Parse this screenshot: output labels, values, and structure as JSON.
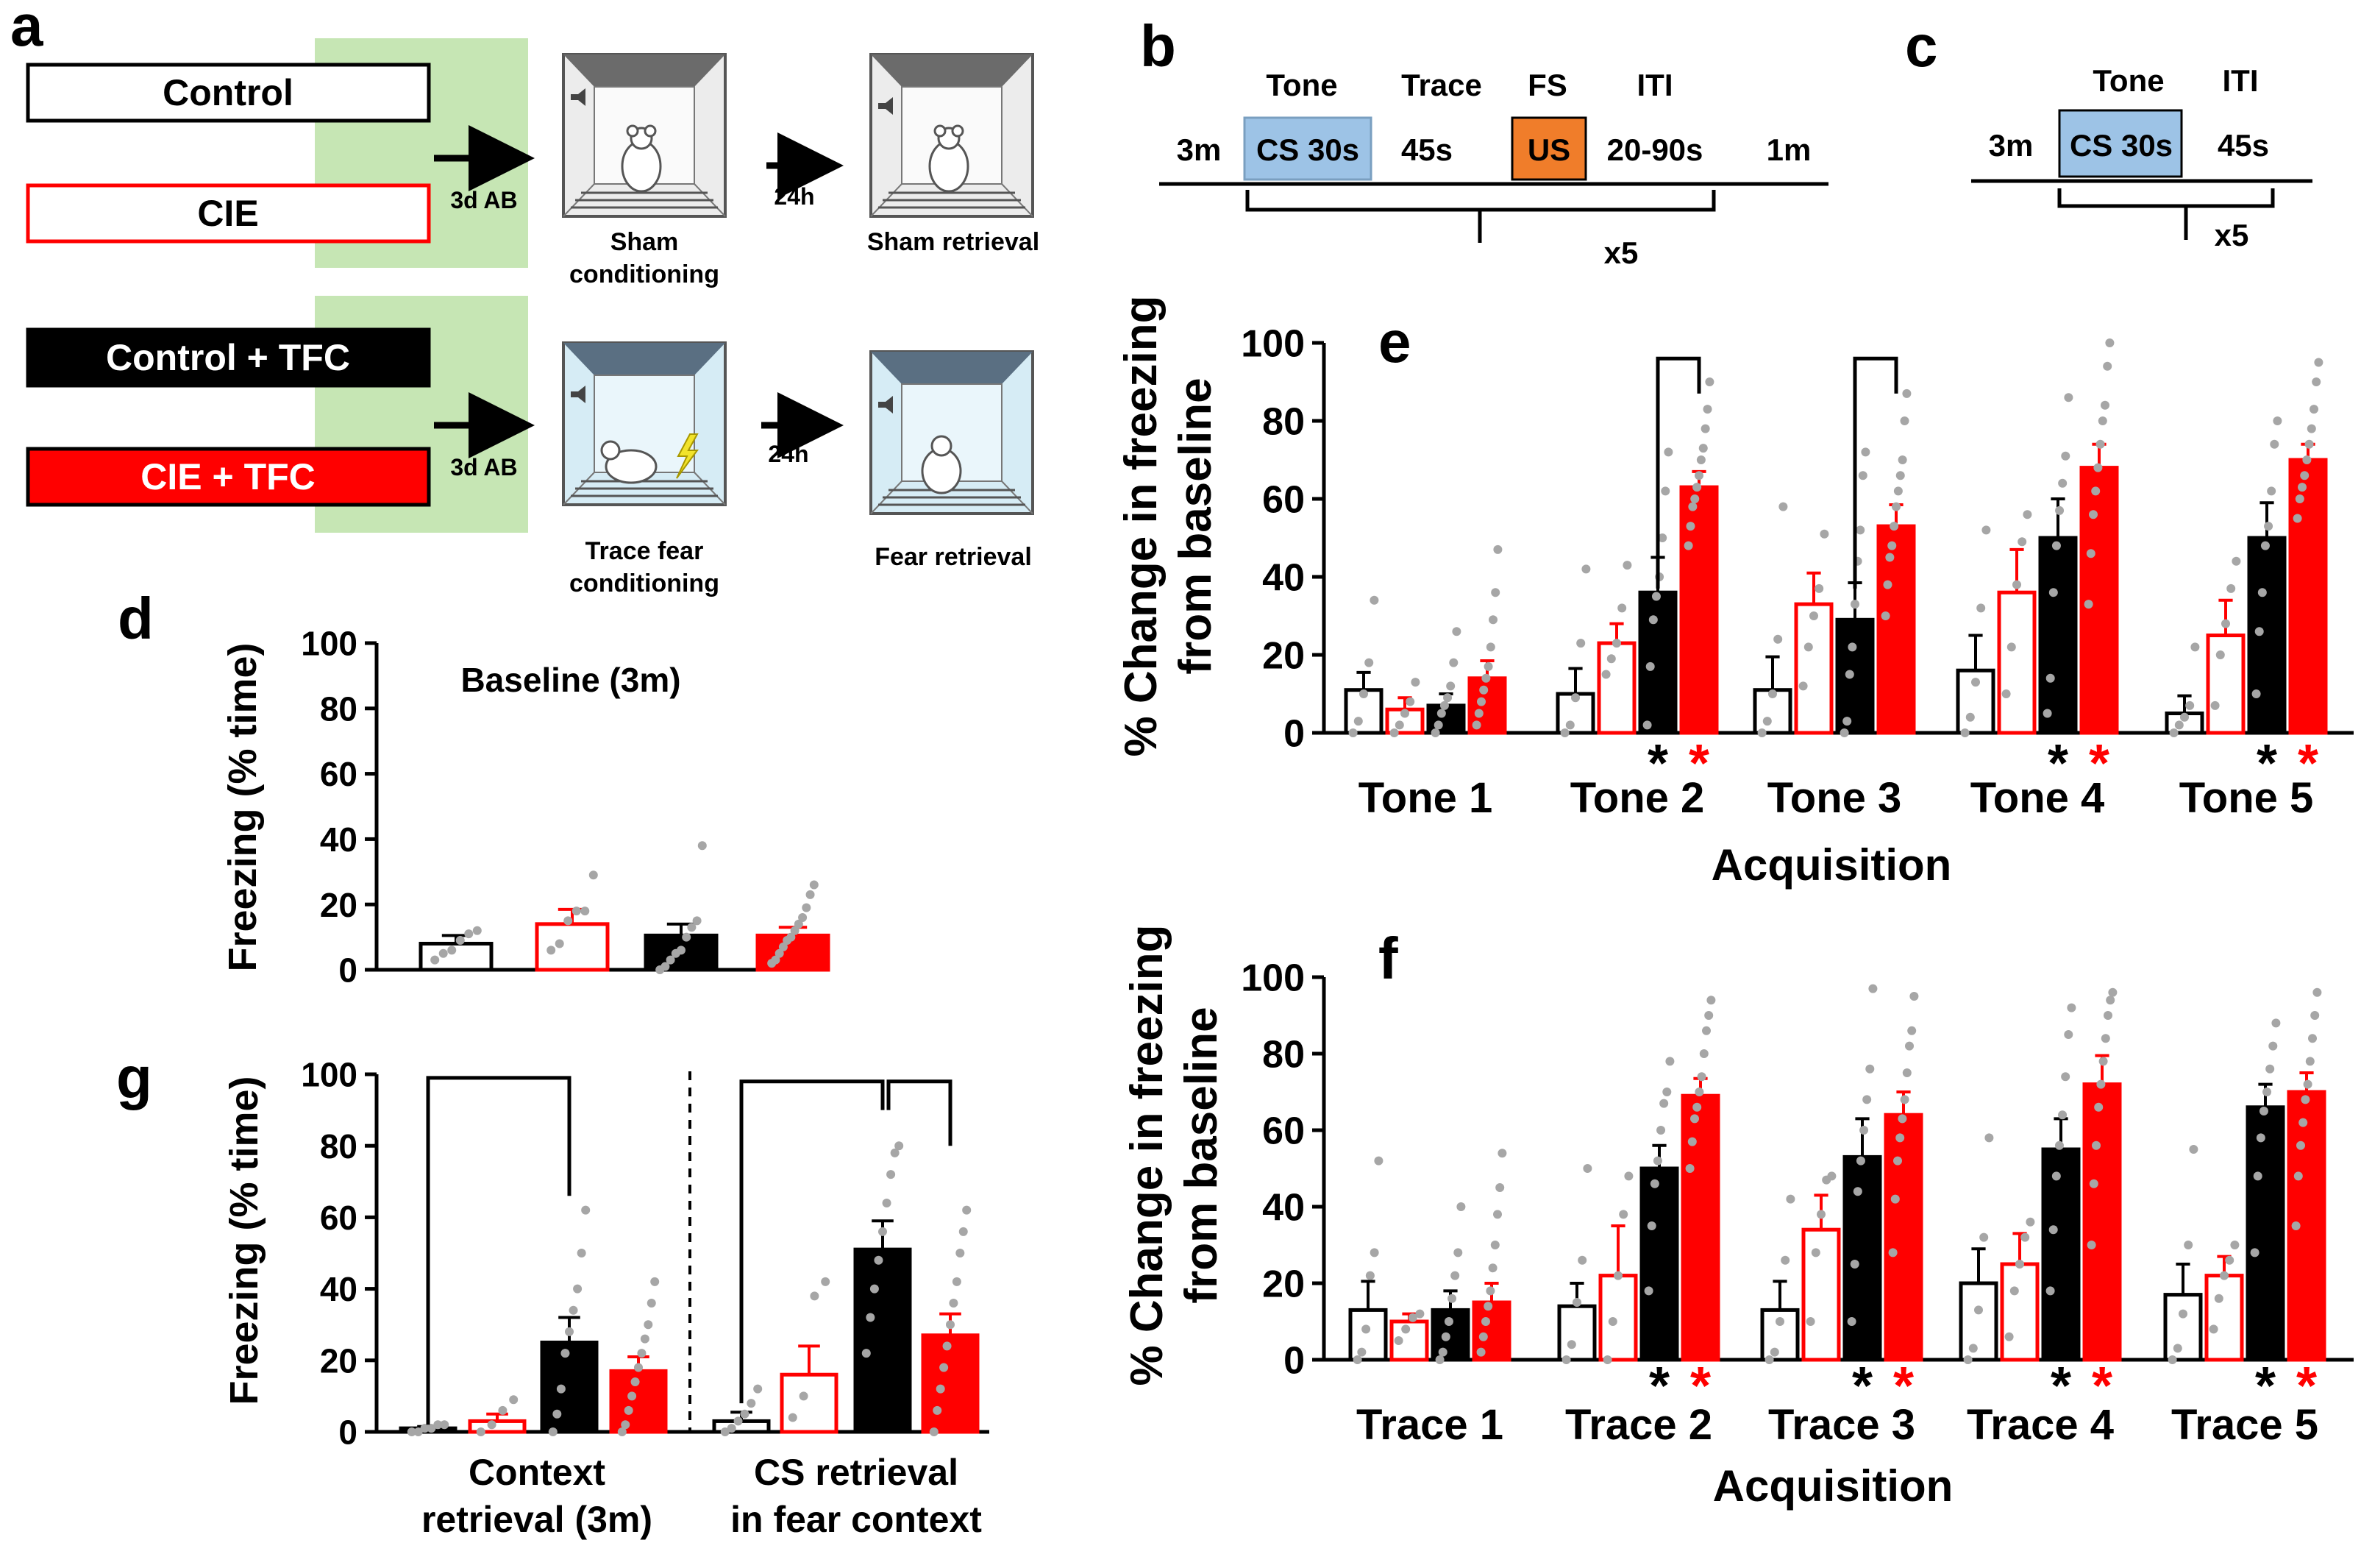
{
  "colors": {
    "red": "#ff0000",
    "black": "#000000",
    "dot": "#a6a6a6",
    "green": "#c6e6b4",
    "cs": "#9dc3e6",
    "us": "#f07d2a",
    "box_blue": "#bfe1ee"
  },
  "panel_a": {
    "letter": "a",
    "groups": [
      "Control",
      "CIE",
      "Control + TFC",
      "CIE + TFC"
    ],
    "arrow_labels": [
      "3d AB",
      "24h",
      "3d AB",
      "24h"
    ],
    "sham_labels": [
      "Sham",
      "conditioning",
      "Sham retrieval"
    ],
    "fear_labels": [
      "Trace fear",
      "conditioning",
      "Fear retrieval"
    ]
  },
  "panel_b": {
    "letter": "b",
    "top_labels": [
      "Tone",
      "Trace",
      "FS",
      "ITI"
    ],
    "timeline_labels": [
      "3m",
      "CS 30s",
      "45s",
      "US",
      "20-90s",
      "1m"
    ],
    "repeat": "x5"
  },
  "panel_c": {
    "letter": "c",
    "top_labels": [
      "Tone",
      "ITI"
    ],
    "timeline_labels": [
      "3m",
      "CS 30s",
      "45s"
    ],
    "repeat": "x5"
  },
  "chart_data": [
    {
      "id": "d",
      "letter": "d",
      "type": "bar",
      "title": "Baseline (3m)",
      "ylabel": "Freezing (% time)",
      "ylim": [
        0,
        100
      ],
      "yticks": [
        "0",
        "20",
        "40",
        "60",
        "80",
        "100"
      ],
      "groups": [
        "Control",
        "CIE",
        "Control + TFC",
        "CIE + TFC"
      ],
      "means": [
        8,
        14,
        10.5,
        10.5
      ],
      "sems": [
        2.5,
        4.5,
        3.5,
        2.5
      ],
      "points": [
        [
          3,
          5,
          6,
          9,
          11,
          12
        ],
        [
          6,
          8,
          15,
          18,
          18,
          29
        ],
        [
          0,
          1,
          3,
          5,
          6,
          10,
          13,
          15,
          38
        ],
        [
          2,
          3,
          5,
          7,
          9,
          10,
          12,
          14,
          16,
          19,
          23,
          26
        ]
      ]
    },
    {
      "id": "e",
      "letter": "e",
      "type": "bar",
      "xlabel": "Acquisition",
      "ylabel_lines": [
        "% Change in freezing",
        "from baseline"
      ],
      "ylim": [
        0,
        100
      ],
      "yticks": [
        "0",
        "20",
        "40",
        "60",
        "80",
        "100"
      ],
      "categories": [
        "Tone 1",
        "Tone 2",
        "Tone 3",
        "Tone 4",
        "Tone 5"
      ],
      "series": [
        {
          "name": "Control",
          "values": [
            11,
            10,
            11,
            16,
            5
          ],
          "sems": [
            4.5,
            6.5,
            8.5,
            9,
            4.5
          ],
          "points": [
            [
              0,
              3,
              10,
              18,
              34
            ],
            [
              0,
              2,
              9,
              23,
              42
            ],
            [
              0,
              3,
              10,
              24,
              58
            ],
            [
              0,
              4,
              13,
              32,
              52
            ],
            [
              0,
              2,
              4,
              7,
              22
            ]
          ]
        },
        {
          "name": "CIE",
          "values": [
            6,
            23,
            33,
            36,
            25
          ],
          "sems": [
            3,
            5,
            8,
            11,
            9
          ],
          "points": [
            [
              0,
              2,
              5,
              8,
              13
            ],
            [
              15,
              19,
              23,
              32,
              43
            ],
            [
              12,
              22,
              30,
              37,
              51
            ],
            [
              10,
              22,
              38,
              49,
              56
            ],
            [
              7,
              20,
              28,
              37,
              44
            ]
          ]
        },
        {
          "name": "Control + TFC",
          "values": [
            7,
            36,
            29,
            50,
            50
          ],
          "sems": [
            3,
            9,
            9.5,
            10,
            9
          ],
          "points": [
            [
              0,
              2,
              5,
              7,
              9,
              12,
              18,
              26
            ],
            [
              2,
              17,
              29,
              35,
              40,
              50,
              62,
              72
            ],
            [
              0,
              3,
              15,
              22,
              33,
              44,
              52,
              66,
              72
            ],
            [
              5,
              14,
              36,
              48,
              57,
              64,
              71,
              86
            ],
            [
              10,
              26,
              36,
              48,
              53,
              62,
              74,
              80
            ]
          ]
        },
        {
          "name": "CIE + TFC",
          "values": [
            14,
            63,
            53,
            68,
            70
          ],
          "sems": [
            4.5,
            4,
            5.5,
            6,
            4
          ],
          "points": [
            [
              2,
              5,
              8,
              11,
              14,
              17,
              22,
              29,
              36,
              47
            ],
            [
              48,
              53,
              58,
              60,
              63,
              66,
              70,
              73,
              78,
              83,
              90
            ],
            [
              30,
              38,
              45,
              48,
              53,
              58,
              62,
              66,
              70,
              80,
              87
            ],
            [
              33,
              46,
              56,
              62,
              68,
              74,
              80,
              84,
              94,
              100
            ],
            [
              55,
              60,
              63,
              66,
              70,
              74,
              78,
              83,
              90,
              95
            ]
          ]
        }
      ],
      "significance": [
        [
          "*",
          "*"
        ],
        [
          "*",
          "*"
        ],
        [
          "*",
          "*"
        ]
      ],
      "sig_categories": [
        "Tone 2",
        "Tone 4",
        "Tone 5"
      ]
    },
    {
      "id": "f",
      "letter": "f",
      "type": "bar",
      "xlabel": "Acquisition",
      "ylabel_lines": [
        "% Change in freezing",
        "from baseline"
      ],
      "ylim": [
        0,
        100
      ],
      "yticks": [
        "0",
        "20",
        "40",
        "60",
        "80",
        "100"
      ],
      "categories": [
        "Trace 1",
        "Trace 2",
        "Trace 3",
        "Trace 4",
        "Trace 5"
      ],
      "series": [
        {
          "name": "Control",
          "values": [
            13,
            14,
            13,
            20,
            17
          ],
          "sems": [
            7.5,
            6,
            7.5,
            9,
            8
          ],
          "points": [
            [
              0,
              2,
              8,
              22,
              28,
              52
            ],
            [
              0,
              4,
              15,
              26,
              50
            ],
            [
              0,
              2,
              10,
              26,
              42
            ],
            [
              0,
              3,
              13,
              32,
              58
            ],
            [
              0,
              3,
              12,
              30,
              55
            ]
          ]
        },
        {
          "name": "CIE",
          "values": [
            10,
            22,
            34,
            25,
            22
          ],
          "sems": [
            2,
            13,
            9,
            8,
            5
          ],
          "points": [
            [
              5,
              8,
              11,
              12
            ],
            [
              0,
              10,
              22,
              38,
              48
            ],
            [
              10,
              28,
              38,
              47,
              48
            ],
            [
              6,
              18,
              25,
              32,
              36
            ],
            [
              8,
              16,
              22,
              26,
              30
            ]
          ]
        },
        {
          "name": "Control + TFC",
          "values": [
            13,
            50,
            53,
            55,
            66
          ],
          "sems": [
            5,
            6,
            10,
            8,
            6
          ],
          "points": [
            [
              0,
              2,
              6,
              10,
              16,
              22,
              28,
              40
            ],
            [
              18,
              35,
              46,
              52,
              60,
              67,
              70,
              78
            ],
            [
              10,
              25,
              44,
              52,
              60,
              68,
              76,
              97
            ],
            [
              18,
              34,
              48,
              56,
              64,
              74,
              85,
              92
            ],
            [
              28,
              48,
              58,
              65,
              70,
              76,
              82,
              88
            ]
          ]
        },
        {
          "name": "CIE + TFC",
          "values": [
            15,
            69,
            64,
            72,
            70
          ],
          "sems": [
            5,
            4.5,
            6,
            7.5,
            5
          ],
          "points": [
            [
              2,
              6,
              10,
              14,
              18,
              24,
              30,
              38,
              45,
              54
            ],
            [
              50,
              57,
              63,
              66,
              70,
              74,
              80,
              86,
              90,
              94
            ],
            [
              28,
              42,
              52,
              58,
              63,
              68,
              75,
              82,
              86,
              95
            ],
            [
              30,
              46,
              56,
              66,
              72,
              78,
              84,
              90,
              94,
              96
            ],
            [
              35,
              48,
              56,
              62,
              68,
              72,
              78,
              84,
              90,
              96
            ]
          ]
        }
      ],
      "significance": [
        [
          "*",
          "*"
        ],
        [
          "*",
          "*"
        ],
        [
          "*",
          "*"
        ],
        [
          "*",
          "*"
        ]
      ],
      "sig_categories": [
        "Trace 2",
        "Trace 3",
        "Trace 4",
        "Trace 5"
      ]
    },
    {
      "id": "g",
      "letter": "g",
      "type": "bar",
      "ylabel": "Freezing (% time)",
      "ylim": [
        0,
        100
      ],
      "yticks": [
        "0",
        "20",
        "40",
        "60",
        "80",
        "100"
      ],
      "categories": [
        [
          "Context",
          "retrieval (3m)"
        ],
        [
          "CS retrieval",
          "in fear context"
        ]
      ],
      "series": [
        {
          "name": "Control",
          "values": [
            1,
            3
          ],
          "sems": [
            0.5,
            2.5
          ],
          "points": [
            [
              0,
              0,
              1,
              1,
              2,
              2
            ],
            [
              0,
              1,
              3,
              5,
              8,
              12
            ]
          ]
        },
        {
          "name": "CIE",
          "values": [
            3,
            16
          ],
          "sems": [
            2,
            8
          ],
          "points": [
            [
              0,
              2,
              6,
              9
            ],
            [
              4,
              10,
              38,
              42
            ]
          ]
        },
        {
          "name": "Control + TFC",
          "values": [
            25,
            51
          ],
          "sems": [
            7,
            8
          ],
          "points": [
            [
              0,
              5,
              12,
              22,
              28,
              34,
              40,
              50,
              62
            ],
            [
              22,
              32,
              40,
              48,
              56,
              64,
              72,
              78,
              80
            ]
          ]
        },
        {
          "name": "CIE + TFC",
          "values": [
            17,
            27
          ],
          "sems": [
            4,
            6
          ],
          "points": [
            [
              0,
              2,
              6,
              10,
              14,
              18,
              22,
              26,
              30,
              36,
              42
            ],
            [
              0,
              6,
              12,
              18,
              24,
              30,
              36,
              42,
              50,
              56,
              62
            ]
          ]
        }
      ]
    }
  ]
}
